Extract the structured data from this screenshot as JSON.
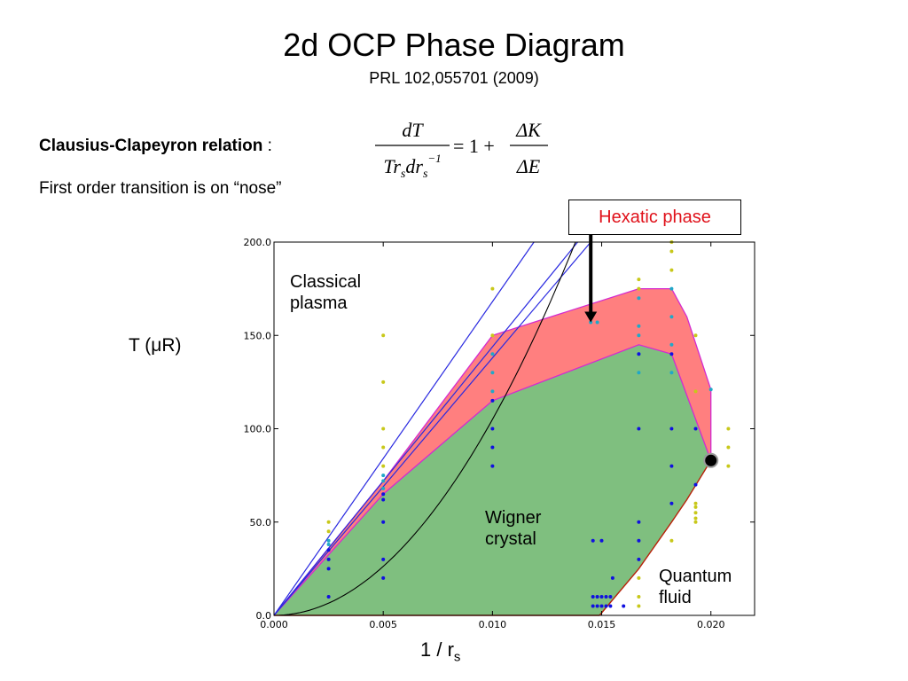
{
  "header": {
    "title": "2d OCP Phase Diagram",
    "subtitle": "PRL 102,055701 (2009)"
  },
  "notes": {
    "clausius_bold": "Clausius-Clapeyron relation",
    "clausius_colon": " :",
    "first_order": "First order transition is on “nose”"
  },
  "equation": {
    "lhs_num": "dT",
    "rhs_one": "= 1 +",
    "rhs_num": "ΔK",
    "rhs_den": "ΔE"
  },
  "callout": {
    "hexatic": "Hexatic phase"
  },
  "axes": {
    "ylabel": "T (μR)",
    "xlabel_main": "1 / r",
    "xlabel_sub": "s"
  },
  "regions": {
    "classical_1": "Classical",
    "classical_2": "plasma",
    "wigner_1": "Wigner",
    "wigner_2": "crystal",
    "quantum_1": "Quantum",
    "quantum_2": "fluid"
  },
  "colors": {
    "hexatic_fill": "#ff7f7f",
    "crystal_fill": "#7fbf7f",
    "boundary_magenta": "#d42ad0",
    "boundary_red": "#b8220a",
    "line_blue": "#2a2ae0",
    "point_blue": "#1010e0",
    "point_cyan": "#20a8c8",
    "point_yellow": "#c8c81a",
    "callout_text": "#e0111a"
  },
  "chart_data": {
    "type": "scatter",
    "xlim": [
      0.0,
      0.022
    ],
    "ylim": [
      0.0,
      200.0
    ],
    "x_ticks": [
      0.0,
      0.005,
      0.01,
      0.015,
      0.02
    ],
    "x_tick_labels": [
      "0.000",
      "0.005",
      "0.010",
      "0.015",
      "0.020"
    ],
    "y_ticks": [
      0.0,
      50.0,
      100.0,
      150.0,
      200.0
    ],
    "y_tick_labels": [
      "0.0",
      "50.0",
      "100.0",
      "150.0",
      "200.0"
    ],
    "grid": false,
    "upper_boundary": [
      [
        0,
        0
      ],
      [
        0.005,
        72
      ],
      [
        0.01,
        150
      ],
      [
        0.0167,
        175
      ],
      [
        0.0182,
        175
      ],
      [
        0.0189,
        160
      ],
      [
        0.02,
        121
      ],
      [
        0.02,
        83
      ]
    ],
    "lower_boundary": [
      [
        0,
        0
      ],
      [
        0.005,
        65
      ],
      [
        0.01,
        115
      ],
      [
        0.0167,
        145
      ],
      [
        0.0182,
        140
      ],
      [
        0.02,
        83
      ]
    ],
    "quantum_boundary": [
      [
        0.0149,
        0
      ],
      [
        0.0167,
        25
      ],
      [
        0.0182,
        50
      ],
      [
        0.0189,
        62
      ],
      [
        0.02,
        83
      ]
    ],
    "triple_point": [
      0.02,
      83
    ],
    "straight_lines": [
      {
        "from": [
          0,
          0
        ],
        "to": [
          0.0119,
          200
        ]
      },
      {
        "from": [
          0,
          0
        ],
        "to": [
          0.0139,
          200
        ]
      },
      {
        "from": [
          0,
          0
        ],
        "to": [
          0.0145,
          200
        ]
      }
    ],
    "parabola": {
      "coeff": 1050000.0,
      "x_max": 0.0138
    },
    "arrow": {
      "from": [
        0.0145,
        200
      ],
      "to": [
        0.0145,
        157
      ]
    },
    "points_blue": [
      [
        0.0025,
        10
      ],
      [
        0.0025,
        25
      ],
      [
        0.0025,
        30
      ],
      [
        0.0025,
        35
      ],
      [
        0.005,
        20
      ],
      [
        0.005,
        30
      ],
      [
        0.005,
        50
      ],
      [
        0.005,
        62
      ],
      [
        0.005,
        65
      ],
      [
        0.01,
        80
      ],
      [
        0.01,
        90
      ],
      [
        0.01,
        100
      ],
      [
        0.01,
        115
      ],
      [
        0.0146,
        40
      ],
      [
        0.015,
        40
      ],
      [
        0.0155,
        20
      ],
      [
        0.0146,
        10
      ],
      [
        0.0148,
        10
      ],
      [
        0.015,
        10
      ],
      [
        0.0152,
        10
      ],
      [
        0.0154,
        10
      ],
      [
        0.0146,
        5
      ],
      [
        0.0148,
        5
      ],
      [
        0.015,
        5
      ],
      [
        0.0152,
        5
      ],
      [
        0.0154,
        5
      ],
      [
        0.016,
        5
      ],
      [
        0.0167,
        30
      ],
      [
        0.0167,
        40
      ],
      [
        0.0167,
        50
      ],
      [
        0.0167,
        100
      ],
      [
        0.0167,
        140
      ],
      [
        0.0182,
        60
      ],
      [
        0.0182,
        80
      ],
      [
        0.0182,
        100
      ],
      [
        0.0182,
        140
      ],
      [
        0.0193,
        70
      ],
      [
        0.0193,
        100
      ],
      [
        0.0198,
        85
      ]
    ],
    "points_cyan": [
      [
        0.0025,
        38
      ],
      [
        0.0025,
        40
      ],
      [
        0.005,
        68
      ],
      [
        0.005,
        72
      ],
      [
        0.005,
        75
      ],
      [
        0.01,
        130
      ],
      [
        0.01,
        140
      ],
      [
        0.01,
        120
      ],
      [
        0.0145,
        157
      ],
      [
        0.0148,
        157
      ],
      [
        0.0167,
        130
      ],
      [
        0.0167,
        140
      ],
      [
        0.0167,
        150
      ],
      [
        0.0167,
        155
      ],
      [
        0.0167,
        170
      ],
      [
        0.0182,
        130
      ],
      [
        0.0182,
        145
      ],
      [
        0.0182,
        160
      ],
      [
        0.0182,
        175
      ],
      [
        0.02,
        121
      ]
    ],
    "points_yellow": [
      [
        0.0025,
        50
      ],
      [
        0.0025,
        45
      ],
      [
        0.005,
        150
      ],
      [
        0.005,
        125
      ],
      [
        0.005,
        100
      ],
      [
        0.005,
        90
      ],
      [
        0.005,
        80
      ],
      [
        0.01,
        175
      ],
      [
        0.01,
        150
      ],
      [
        0.0167,
        180
      ],
      [
        0.0167,
        175
      ],
      [
        0.0167,
        20
      ],
      [
        0.0167,
        10
      ],
      [
        0.0167,
        5
      ],
      [
        0.0182,
        200
      ],
      [
        0.0182,
        195
      ],
      [
        0.0182,
        185
      ],
      [
        0.0182,
        40
      ],
      [
        0.0193,
        150
      ],
      [
        0.0193,
        120
      ],
      [
        0.0193,
        60
      ],
      [
        0.0193,
        58
      ],
      [
        0.0193,
        55
      ],
      [
        0.0193,
        52
      ],
      [
        0.0193,
        50
      ],
      [
        0.0208,
        100
      ],
      [
        0.0208,
        90
      ],
      [
        0.0208,
        80
      ]
    ]
  }
}
